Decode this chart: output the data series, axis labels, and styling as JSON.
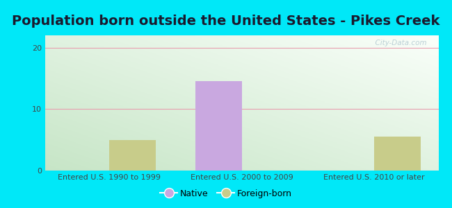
{
  "title": "Population born outside the United States - Pikes Creek",
  "categories": [
    "Entered U.S. 1990 to 1999",
    "Entered U.S. 2000 to 2009",
    "Entered U.S. 2010 or later"
  ],
  "native_values": [
    0,
    14.5,
    0
  ],
  "foreign_values": [
    5,
    0,
    5.5
  ],
  "native_color": "#c9a8e0",
  "foreign_color": "#c8cc8a",
  "ylim": [
    0,
    22
  ],
  "yticks": [
    0,
    10,
    20
  ],
  "background_outer": "#00e8f8",
  "grid_color": "#e8a0b0",
  "grid_linewidth": 0.8,
  "bar_width": 0.35,
  "title_fontsize": 14,
  "tick_fontsize": 8,
  "legend_labels": [
    "Native",
    "Foreign-born"
  ],
  "watermark": "  City-Data.com"
}
